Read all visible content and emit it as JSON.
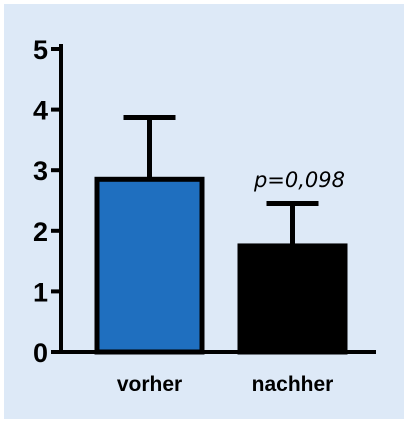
{
  "chart_data": {
    "type": "bar",
    "categories": [
      "vorher",
      "nachher"
    ],
    "values": [
      2.85,
      1.75
    ],
    "error_upper": [
      3.87,
      2.45
    ],
    "colors": [
      "#1f6fbf",
      "#000000"
    ],
    "yticks": [
      "0",
      "1",
      "2",
      "3",
      "4",
      "5"
    ],
    "ylim": [
      0,
      5
    ],
    "annotation": "p=0,098",
    "grid": false
  }
}
